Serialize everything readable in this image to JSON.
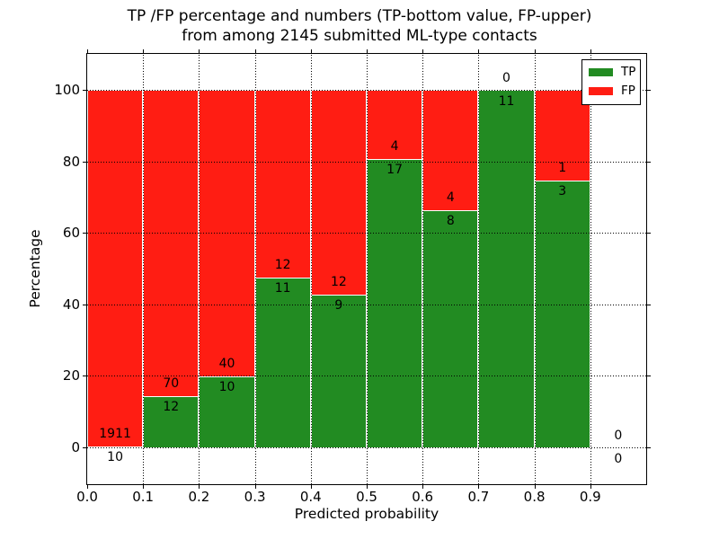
{
  "chart_data": {
    "type": "bar",
    "stacked": true,
    "title_lines": [
      "TP /FP percentage and numbers (TP-bottom value, FP-upper)",
      "from among 2145 submitted ML-type contacts"
    ],
    "title": "TP /FP percentage and numbers (TP-bottom value, FP-upper)\nfrom among 2145 submitted ML-type contacts",
    "xlabel": "Predicted probability",
    "ylabel": "Percentage",
    "xlim": [
      0.0,
      1.0
    ],
    "ylim": [
      -10.3,
      110
    ],
    "grid": true,
    "grid_style": "dotted",
    "xticks": [
      "0.0",
      "0.1",
      "0.2",
      "0.3",
      "0.4",
      "0.5",
      "0.6",
      "0.7",
      "0.8",
      "0.9"
    ],
    "xtick_values": [
      0.0,
      0.1,
      0.2,
      0.3,
      0.4,
      0.5,
      0.6,
      0.7,
      0.8,
      0.9
    ],
    "yticks": [
      "0",
      "20",
      "40",
      "60",
      "80",
      "100"
    ],
    "ytick_values": [
      0,
      20,
      40,
      60,
      80,
      100
    ],
    "total_contacts": 2145,
    "legend_position": "upper right",
    "legend": [
      {
        "label": "TP",
        "color": "#228b22"
      },
      {
        "label": "FP",
        "color": "#ff1d13"
      }
    ],
    "bins": [
      {
        "range": "0.0-0.1",
        "tp": 10,
        "fp": 1911,
        "tp_pct": 0.52
      },
      {
        "range": "0.1-0.2",
        "tp": 12,
        "fp": 70,
        "tp_pct": 14.63
      },
      {
        "range": "0.2-0.3",
        "tp": 10,
        "fp": 40,
        "tp_pct": 20.0
      },
      {
        "range": "0.3-0.4",
        "tp": 11,
        "fp": 12,
        "tp_pct": 47.83
      },
      {
        "range": "0.4-0.5",
        "tp": 9,
        "fp": 12,
        "tp_pct": 42.86
      },
      {
        "range": "0.5-0.6",
        "tp": 17,
        "fp": 4,
        "tp_pct": 80.95
      },
      {
        "range": "0.6-0.7",
        "tp": 8,
        "fp": 4,
        "tp_pct": 66.67
      },
      {
        "range": "0.7-0.8",
        "tp": 11,
        "fp": 0,
        "tp_pct": 100.0
      },
      {
        "range": "0.8-0.9",
        "tp": 3,
        "fp": 1,
        "tp_pct": 75.0
      },
      {
        "range": "0.9-1.0",
        "tp": 0,
        "fp": 0,
        "tp_pct": null
      }
    ],
    "colors": {
      "tp": "#228b22",
      "fp": "#ff1d13",
      "axis": "#000000",
      "background": "#ffffff"
    }
  }
}
